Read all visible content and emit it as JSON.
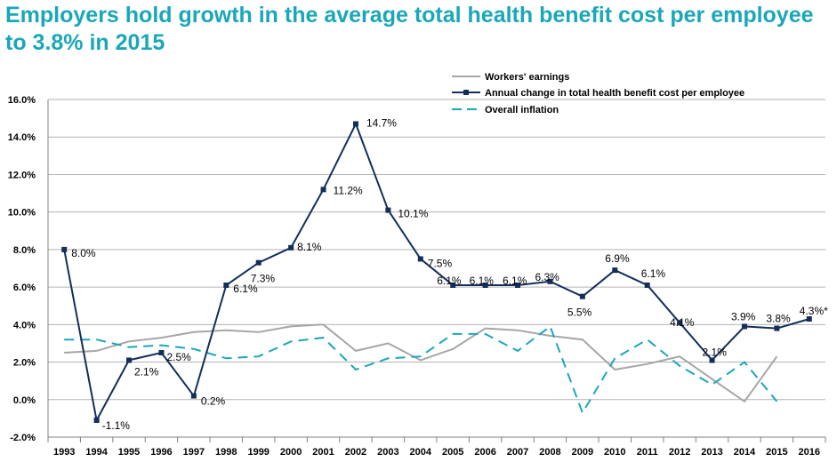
{
  "title": "Employers hold growth in the average total health benefit cost per employee to 3.8% in 2015",
  "chart_data": {
    "type": "line",
    "title": "Employers hold growth in the average total health benefit cost per employee to 3.8% in 2015",
    "xlabel": "",
    "ylabel": "",
    "categories": [
      "1993",
      "1994",
      "1995",
      "1996",
      "1997",
      "1998",
      "1999",
      "2000",
      "2001",
      "2002",
      "2003",
      "2004",
      "2005",
      "2006",
      "2007",
      "2008",
      "2009",
      "2010",
      "2011",
      "2012",
      "2013",
      "2014",
      "2015",
      "2016"
    ],
    "ylim": [
      -2.0,
      16.0
    ],
    "yticks": [
      "-2.0%",
      "0.0%",
      "2.0%",
      "4.0%",
      "6.0%",
      "8.0%",
      "10.0%",
      "12.0%",
      "14.0%",
      "16.0%"
    ],
    "grid": true,
    "legend_position": "top-center",
    "series": [
      {
        "name": "Workers' earnings",
        "color": "#a6a6a6",
        "style": "solid",
        "values": [
          2.5,
          2.6,
          3.1,
          3.3,
          3.6,
          3.7,
          3.6,
          3.9,
          4.0,
          2.6,
          3.0,
          2.1,
          2.7,
          3.8,
          3.7,
          3.4,
          3.2,
          1.6,
          1.9,
          2.3,
          1.1,
          -0.1,
          2.3,
          null
        ]
      },
      {
        "name": "Annual change in total health benefit cost per employee",
        "color": "#132e5a",
        "style": "solid-markers",
        "values": [
          8.0,
          -1.1,
          2.1,
          2.5,
          0.2,
          6.1,
          7.3,
          8.1,
          11.2,
          14.7,
          10.1,
          7.5,
          6.1,
          6.1,
          6.1,
          6.3,
          5.5,
          6.9,
          6.1,
          4.1,
          2.1,
          3.9,
          3.8,
          4.3
        ],
        "labels": [
          "8.0%",
          "-1.1%",
          "2.1%",
          "2.5%",
          "0.2%",
          "6.1%",
          "7.3%",
          "8.1%",
          "11.2%",
          "14.7%",
          "10.1%",
          "7.5%",
          "6.1%",
          "6.1%",
          "6.1%",
          "6.3%",
          "5.5%",
          "6.9%",
          "6.1%",
          "4.1%",
          "2.1%",
          "3.9%",
          "3.8%",
          "4.3%*"
        ]
      },
      {
        "name": "Overall inflation",
        "color": "#1aa7b8",
        "style": "dashed",
        "values": [
          3.2,
          3.2,
          2.8,
          2.9,
          2.7,
          2.2,
          2.3,
          3.1,
          3.3,
          1.6,
          2.2,
          2.3,
          3.5,
          3.5,
          2.6,
          3.9,
          -0.7,
          2.2,
          3.2,
          1.8,
          0.8,
          2.0,
          -0.1,
          null
        ]
      }
    ]
  }
}
